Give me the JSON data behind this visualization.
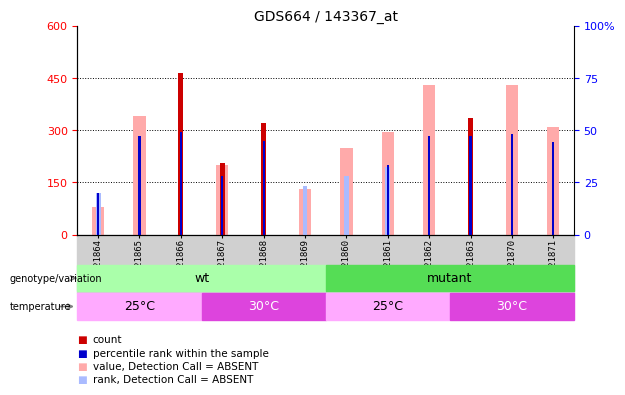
{
  "title": "GDS664 / 143367_at",
  "samples": [
    "GSM21864",
    "GSM21865",
    "GSM21866",
    "GSM21867",
    "GSM21868",
    "GSM21869",
    "GSM21860",
    "GSM21861",
    "GSM21862",
    "GSM21863",
    "GSM21870",
    "GSM21871"
  ],
  "count_values": [
    0,
    0,
    465,
    205,
    320,
    0,
    0,
    0,
    0,
    335,
    0,
    0
  ],
  "percentile_rank": [
    120,
    285,
    295,
    170,
    270,
    0,
    0,
    200,
    285,
    285,
    290,
    265
  ],
  "absent_value": [
    80,
    340,
    0,
    200,
    0,
    130,
    250,
    295,
    430,
    0,
    430,
    310
  ],
  "absent_rank": [
    120,
    0,
    0,
    0,
    0,
    140,
    170,
    195,
    0,
    0,
    0,
    0
  ],
  "ylim_left": [
    0,
    600
  ],
  "ylim_right": [
    0,
    100
  ],
  "yticks_left": [
    0,
    150,
    300,
    450,
    600
  ],
  "yticks_right": [
    0,
    25,
    50,
    75,
    100
  ],
  "color_count": "#cc0000",
  "color_percentile": "#0000cc",
  "color_absent_value": "#ffaaaa",
  "color_absent_rank": "#aabbff",
  "genotype_wt_color": "#aaffaa",
  "genotype_mutant_color": "#55dd55",
  "temp_25_color": "#ffaaff",
  "temp_30_color": "#dd44dd",
  "bg_color": "#d0d0d0"
}
